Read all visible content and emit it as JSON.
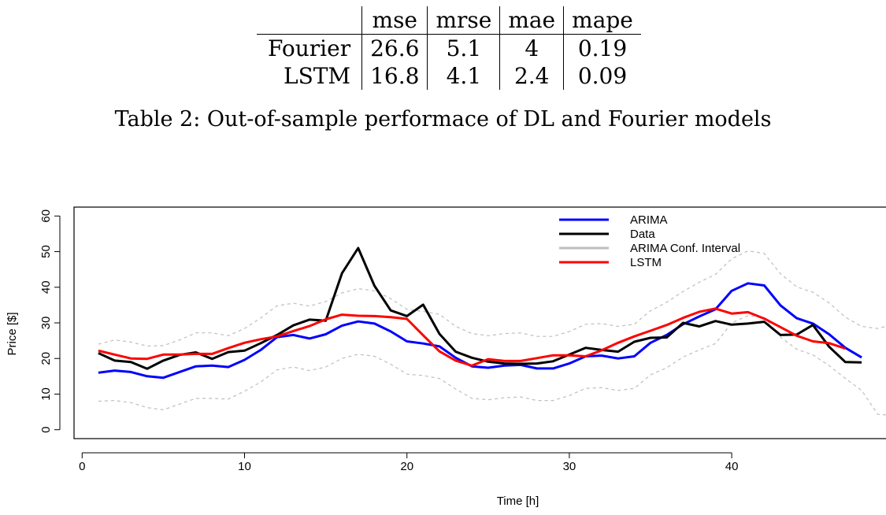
{
  "table": {
    "headers": [
      "",
      "mse",
      "mrse",
      "mae",
      "mape"
    ],
    "rows": [
      {
        "name": "Fourier",
        "values": [
          "26.6",
          "5.1",
          "4",
          "0.19"
        ]
      },
      {
        "name": "LSTM",
        "values": [
          "16.8",
          "4.1",
          "2.4",
          "0.09"
        ]
      }
    ]
  },
  "caption": "Table 2: Out-of-sample performace of DL and Fourier models",
  "chart_data": {
    "type": "line",
    "xlabel": "Time [h]",
    "ylabel": "Price [$]",
    "xlim": [
      -0.5,
      49.5
    ],
    "ylim": [
      -2.5,
      62.5
    ],
    "x_ticks": [
      0,
      10,
      20,
      30,
      40
    ],
    "y_ticks": [
      0,
      10,
      20,
      30,
      40,
      50,
      60
    ],
    "grid": false,
    "legend_position": "top-right",
    "series": [
      {
        "name": "ARIMA",
        "color": "#0000ff",
        "x": [
          1,
          2,
          3,
          4,
          5,
          6,
          7,
          8,
          9,
          10,
          11,
          12,
          13,
          14,
          15,
          16,
          17,
          18,
          19,
          20,
          21,
          22,
          23,
          24,
          25,
          26,
          27,
          28,
          29,
          30,
          31,
          32,
          33,
          34,
          35,
          36,
          37,
          38,
          39,
          40,
          41,
          42,
          43,
          44,
          45,
          46,
          47,
          48
        ],
        "values": [
          16,
          16.6,
          16.2,
          15,
          14.6,
          16.2,
          17.8,
          18,
          17.6,
          19.6,
          22.4,
          26,
          26.6,
          25.6,
          26.8,
          29.2,
          30.4,
          29.8,
          27.6,
          24.8,
          24.2,
          23.4,
          20.2,
          17.8,
          17.4,
          18,
          18.2,
          17.2,
          17.2,
          18.6,
          20.6,
          20.8,
          20,
          20.6,
          24.4,
          26.6,
          29.6,
          31.8,
          33.8,
          39,
          41.1,
          40.5,
          34.9,
          31.3,
          29.8,
          26.8,
          23,
          20.3
        ]
      },
      {
        "name": "Data",
        "color": "#000000",
        "x": [
          1,
          2,
          3,
          4,
          5,
          6,
          7,
          8,
          9,
          10,
          11,
          12,
          13,
          14,
          15,
          16,
          17,
          18,
          19,
          20,
          21,
          22,
          23,
          24,
          25,
          26,
          27,
          28,
          29,
          30,
          31,
          32,
          33,
          34,
          35,
          36,
          37,
          38,
          39,
          40,
          41,
          42,
          43,
          44,
          45,
          46,
          47,
          48
        ],
        "values": [
          21.5,
          19.4,
          19,
          17.1,
          19.4,
          21,
          21.7,
          19.9,
          21.8,
          22.2,
          24.3,
          26.6,
          29.3,
          30.9,
          30.6,
          43.9,
          51,
          40.4,
          33.5,
          31.9,
          35.1,
          26.9,
          21.9,
          20.2,
          19.1,
          18.6,
          18.5,
          18.6,
          19.2,
          21.1,
          23,
          22.4,
          21.9,
          24.7,
          25.8,
          25.9,
          30,
          29,
          30.5,
          29.5,
          29.8,
          30.3,
          26.6,
          26.7,
          29.4,
          23.3,
          19,
          18.9
        ]
      },
      {
        "name": "ARIMA Conf. Interval",
        "color": "#bebebe",
        "x": [
          1,
          2,
          3,
          4,
          5,
          6,
          7,
          8,
          9,
          10,
          11,
          12,
          13,
          14,
          15,
          16,
          17,
          18,
          19,
          20,
          21,
          22,
          23,
          24,
          25,
          26,
          27,
          28,
          29,
          30,
          31,
          32,
          33,
          34,
          35,
          36,
          37,
          38,
          39,
          40,
          41,
          42,
          43,
          44,
          45,
          46,
          47,
          48,
          49,
          50
        ],
        "upper": [
          24,
          25.2,
          24.6,
          23.5,
          23.6,
          25.2,
          27.2,
          27.2,
          26.4,
          28.4,
          31.4,
          34.8,
          35.5,
          34.7,
          36,
          38.4,
          39.6,
          39,
          36.8,
          33.8,
          33.2,
          32.4,
          29,
          27,
          26.4,
          27,
          27.2,
          26.2,
          26.2,
          27.6,
          29.6,
          29.8,
          29,
          29.6,
          33.4,
          35.8,
          38.8,
          41.4,
          43.6,
          48,
          50.2,
          49.5,
          43.8,
          40.1,
          38.6,
          35.6,
          31.6,
          29,
          28.4,
          29.6
        ],
        "lower": [
          8,
          8.2,
          7.6,
          6.2,
          5.6,
          7.2,
          8.8,
          8.8,
          8.6,
          10.8,
          13.4,
          16.8,
          17.6,
          16.6,
          17.6,
          20,
          21.2,
          20.6,
          18.4,
          15.6,
          15.2,
          14.4,
          11.4,
          8.8,
          8.4,
          9,
          9.2,
          8.2,
          8.2,
          9.6,
          11.6,
          11.8,
          11,
          11.6,
          15.4,
          17.4,
          20.4,
          22.4,
          24.2,
          30,
          32,
          31.5,
          26,
          22.6,
          21,
          18,
          14.4,
          11,
          4.3,
          4
        ]
      },
      {
        "name": "LSTM",
        "color": "#ff0000",
        "x": [
          1,
          2,
          3,
          4,
          5,
          6,
          7,
          8,
          9,
          10,
          11,
          12,
          13,
          14,
          15,
          16,
          17,
          18,
          19,
          20,
          21,
          22,
          23,
          24,
          25,
          26,
          27,
          28,
          29,
          30,
          31,
          32,
          33,
          34,
          35,
          36,
          37,
          38,
          39,
          40,
          41,
          42,
          43,
          44,
          45,
          46,
          47
        ],
        "values": [
          22.2,
          21.1,
          20,
          19.9,
          21.1,
          21.1,
          21.3,
          21.3,
          22.9,
          24.4,
          25.4,
          26.2,
          27.7,
          29.1,
          31,
          32.3,
          32,
          31.9,
          31.6,
          31.1,
          26.5,
          22,
          19.4,
          18,
          19.8,
          19.3,
          19.3,
          20.1,
          20.9,
          20.9,
          20.6,
          22.3,
          24.4,
          26.2,
          27.8,
          29.4,
          31.4,
          33.1,
          34,
          32.6,
          33,
          31.2,
          28.8,
          26.4,
          24.8,
          24.3,
          22.8
        ]
      }
    ]
  }
}
